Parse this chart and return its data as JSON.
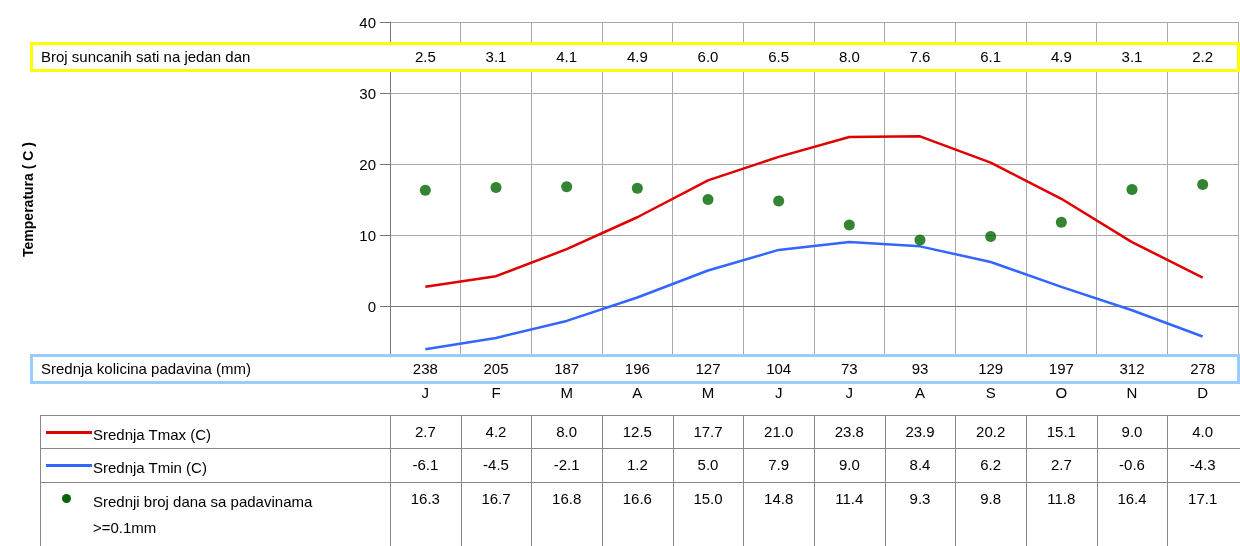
{
  "chart_data": [
    {
      "type": "line",
      "ylabel": "Temperatura ( C )",
      "categories": [
        "J",
        "F",
        "M",
        "A",
        "M",
        "J",
        "J",
        "A",
        "S",
        "O",
        "N",
        "D"
      ],
      "series": [
        {
          "name": "Srednja Tmax (C)",
          "marker": "none",
          "color": "#e00000",
          "values": [
            2.7,
            4.2,
            8.0,
            12.5,
            17.7,
            21.0,
            23.8,
            23.9,
            20.2,
            15.1,
            9.0,
            4.0
          ],
          "value_labels": [
            "2.7",
            "4.2",
            "8.0",
            "12.5",
            "17.7",
            "21.0",
            "23.8",
            "23.9",
            "20.2",
            "15.1",
            "9.0",
            "4.0"
          ]
        },
        {
          "name": "Srednja Tmin (C)",
          "marker": "none",
          "color": "#3366ff",
          "values": [
            -6.1,
            -4.5,
            -2.1,
            1.2,
            5.0,
            7.9,
            9.0,
            8.4,
            6.2,
            2.7,
            -0.6,
            -4.3
          ],
          "value_labels": [
            "-6.1",
            "-4.5",
            "-2.1",
            "1.2",
            "5.0",
            "7.9",
            "9.0",
            "8.4",
            "6.2",
            "2.7",
            "-0.6",
            "-4.3"
          ]
        },
        {
          "name": "Srednji broj dana sa padavinama >=0.1mm",
          "type": "scatter",
          "marker": "circle",
          "color": "#006600",
          "values": [
            16.3,
            16.7,
            16.8,
            16.6,
            15.0,
            14.8,
            11.4,
            9.3,
            9.8,
            11.8,
            16.4,
            17.1
          ],
          "value_labels": [
            "16.3",
            "16.7",
            "16.8",
            "16.6",
            "15.0",
            "14.8",
            "11.4",
            "9.3",
            "9.8",
            "11.8",
            "16.4",
            "17.1"
          ]
        }
      ],
      "ylim": [
        -10,
        40
      ],
      "yticks": [
        0,
        10,
        20,
        30,
        40
      ],
      "grid": true,
      "legend": "bottom",
      "data_labels": true
    },
    {
      "type": "other",
      "title": "Broj suncanih sati na jedan dan",
      "color": "#ffff00",
      "values": [
        2.5,
        3.1,
        4.1,
        4.9,
        6.0,
        6.5,
        8.0,
        7.6,
        6.1,
        4.9,
        3.1,
        2.2
      ],
      "value_labels": [
        "2.5",
        "3.1",
        "4.1",
        "4.9",
        "6.0",
        "6.5",
        "8.0",
        "7.6",
        "6.1",
        "4.9",
        "3.1",
        "2.2"
      ]
    },
    {
      "type": "other",
      "title": "Srednja kolicina padavina (mm)",
      "color": "#99ccff",
      "values": [
        238,
        205,
        187,
        196,
        127,
        104,
        73,
        93,
        129,
        197,
        312,
        278
      ],
      "value_labels": [
        "238",
        "205",
        "187",
        "196",
        "127",
        "104",
        "73",
        "93",
        "129",
        "197",
        "312",
        "278"
      ]
    }
  ]
}
